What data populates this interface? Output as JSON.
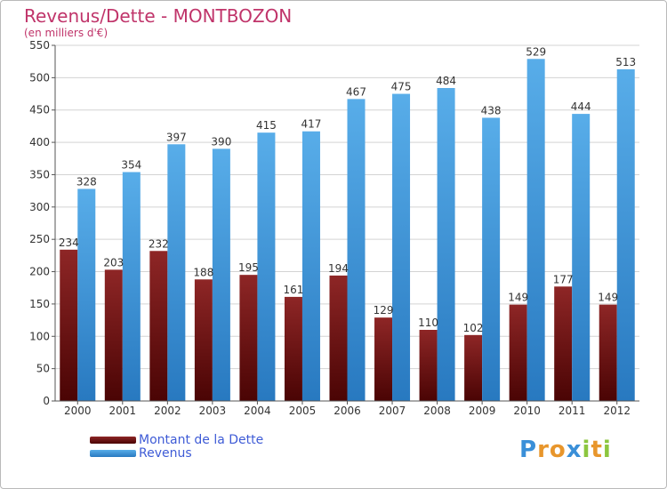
{
  "header": {
    "title": "Revenus/Dette - MONTBOZON",
    "subtitle": "(en milliers d'€)"
  },
  "colors": {
    "dette": "#7a1b1b",
    "revenus": "#3e9be3",
    "title": "#c0346a",
    "legend_text": "#3e5bd6"
  },
  "chart_data": {
    "type": "bar",
    "title": "Revenus/Dette - MONTBOZON",
    "ylabel": "(en milliers d'€)",
    "ylim": [
      0,
      550
    ],
    "yticks": [
      0,
      50,
      100,
      150,
      200,
      250,
      300,
      350,
      400,
      450,
      500,
      550
    ],
    "grid": true,
    "legend_position": "bottom-left",
    "categories": [
      "2000",
      "2001",
      "2002",
      "2003",
      "2004",
      "2005",
      "2006",
      "2007",
      "2008",
      "2009",
      "2010",
      "2011",
      "2012"
    ],
    "series": [
      {
        "name": "Montant de la Dette",
        "values": [
          234,
          203,
          232,
          188,
          195,
          161,
          194,
          129,
          110,
          102,
          149,
          177,
          149
        ]
      },
      {
        "name": "Revenus",
        "values": [
          328,
          354,
          397,
          390,
          415,
          417,
          467,
          475,
          484,
          438,
          529,
          444,
          513
        ]
      }
    ]
  },
  "logo": {
    "letters": [
      "P",
      "r",
      "o",
      "x",
      "i",
      "t",
      "i"
    ],
    "colors": [
      "#3a8fd8",
      "#e8962c",
      "#e8962c",
      "#3a8fd8",
      "#8cc63f",
      "#e8962c",
      "#8cc63f"
    ]
  }
}
